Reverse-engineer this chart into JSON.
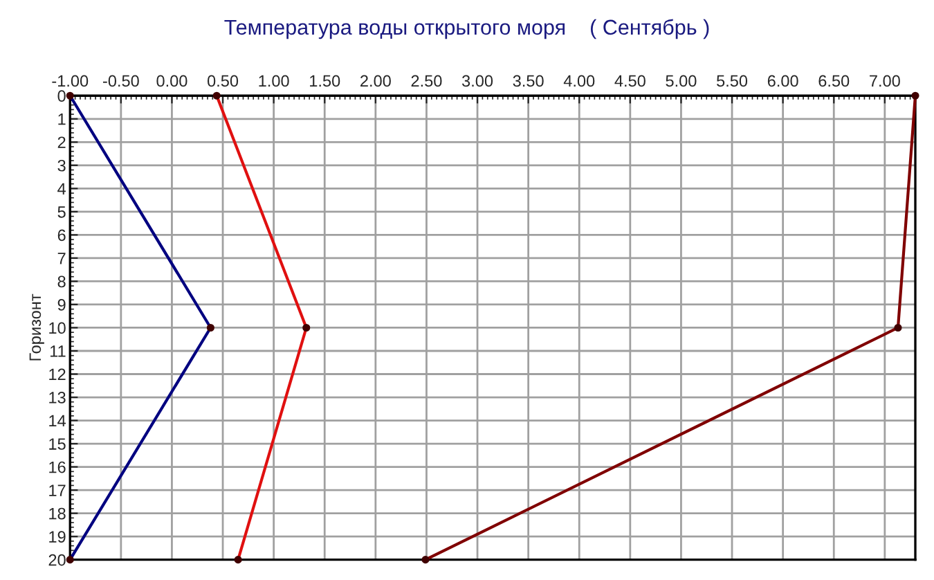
{
  "chart_data": {
    "type": "line",
    "title": "Температура воды открытого моря    ( Сентябрь )",
    "ylabel": "Горизонт",
    "xlim": [
      -1.0,
      7.3
    ],
    "xticks": [
      {
        "value": -1.0,
        "label": "-1.00"
      },
      {
        "value": -0.5,
        "label": "-0.50"
      },
      {
        "value": 0.0,
        "label": "0.00"
      },
      {
        "value": 0.5,
        "label": "0.50"
      },
      {
        "value": 1.0,
        "label": "1.00"
      },
      {
        "value": 1.5,
        "label": "1.50"
      },
      {
        "value": 2.0,
        "label": "2.00"
      },
      {
        "value": 2.5,
        "label": "2.50"
      },
      {
        "value": 3.0,
        "label": "3.00"
      },
      {
        "value": 3.5,
        "label": "3.50"
      },
      {
        "value": 4.0,
        "label": "4.00"
      },
      {
        "value": 4.5,
        "label": "4.50"
      },
      {
        "value": 5.0,
        "label": "5.00"
      },
      {
        "value": 5.5,
        "label": "5.50"
      },
      {
        "value": 6.0,
        "label": "6.00"
      },
      {
        "value": 6.5,
        "label": "6.50"
      },
      {
        "value": 7.0,
        "label": "7.00"
      }
    ],
    "ylim": [
      20,
      0
    ],
    "yticks": [
      0,
      1,
      2,
      3,
      4,
      5,
      6,
      7,
      8,
      9,
      10,
      11,
      12,
      13,
      14,
      15,
      16,
      17,
      18,
      19,
      20
    ],
    "grid": true,
    "marker": "circle",
    "line_style": "solid",
    "series": [
      {
        "color": "#000080",
        "x": [
          -1.0,
          0.38,
          -1.0
        ],
        "values": [
          0,
          10,
          20
        ]
      },
      {
        "color": "#e01010",
        "x": [
          0.44,
          1.32,
          0.65
        ],
        "values": [
          0,
          10,
          20
        ]
      },
      {
        "color": "#800000",
        "x": [
          7.3,
          7.13,
          2.49
        ],
        "values": [
          0,
          10,
          20
        ]
      }
    ]
  }
}
